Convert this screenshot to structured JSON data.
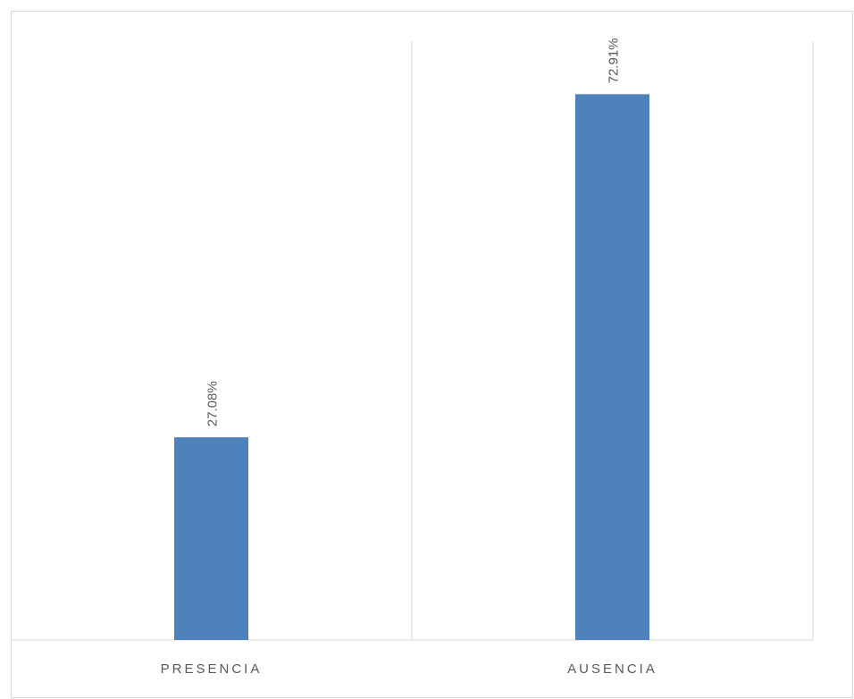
{
  "chart_data": {
    "type": "bar",
    "categories": [
      "PRESENCIA",
      "AUSENCIA"
    ],
    "values": [
      27.08,
      72.91
    ],
    "data_labels": [
      "27.08%",
      "72.91%"
    ],
    "ylim": [
      0,
      80
    ],
    "grid": "vertical-separators",
    "legend": "none",
    "bar_color": "#4f81bd"
  }
}
